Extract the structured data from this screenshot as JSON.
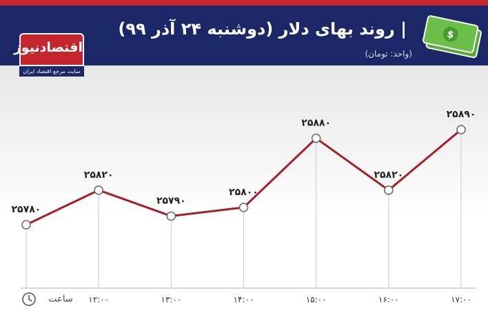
{
  "logo": {
    "name": "اقتصادنیوز",
    "tagline": "سایت مرجع اقتصاد ایران"
  },
  "chart_data": {
    "type": "line",
    "title": "| روند بهای دلار (دوشنبه ۲۴ آذر ۹۹)",
    "subtitle": "(واحد: تومان)",
    "x_label": "ساعت",
    "categories": [
      null,
      "۱۲:۰۰",
      "۱۳:۰۰",
      "۱۴:۰۰",
      "۱۵:۰۰",
      "۱۶:۰۰",
      "۱۷:۰۰"
    ],
    "values": [
      25780,
      25820,
      25790,
      25800,
      25880,
      25820,
      25890
    ],
    "value_labels": [
      "۲۵۷۸۰",
      "۲۵۸۲۰",
      "۲۵۷۹۰",
      "۲۵۸۰۰",
      "۲۵۸۸۰",
      "۲۵۸۲۰",
      "۲۵۸۹۰"
    ],
    "color": "#a61e24"
  }
}
